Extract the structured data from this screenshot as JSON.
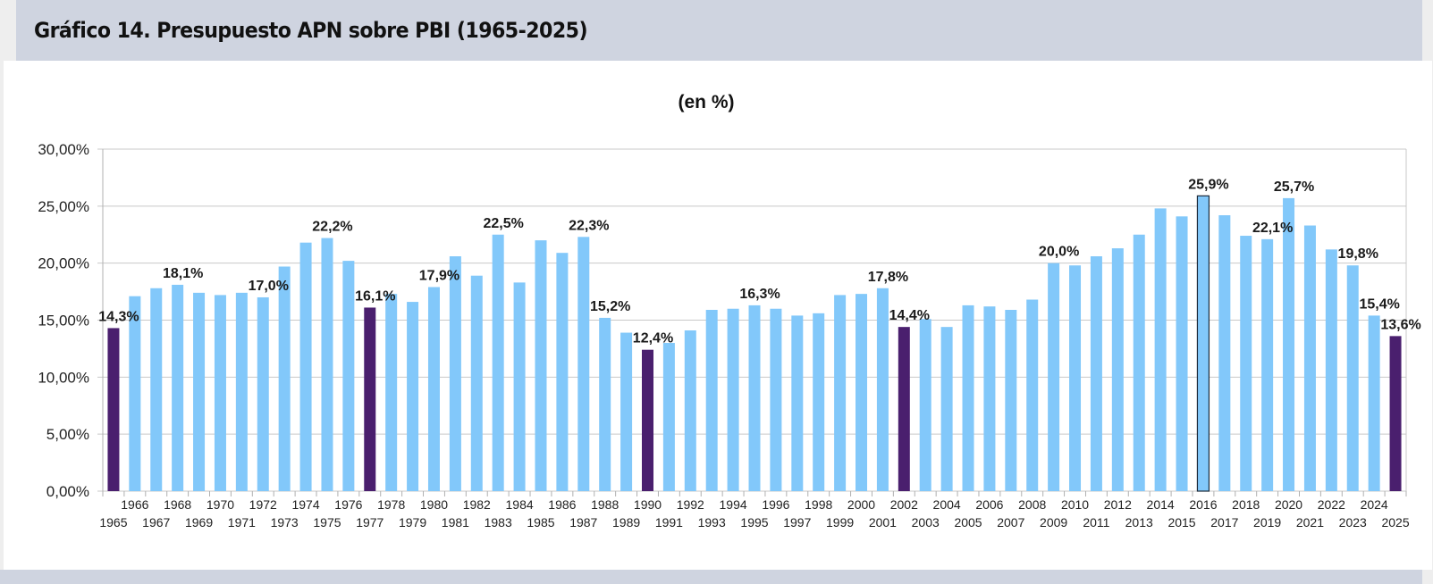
{
  "header": {
    "title": "Gráfico 14. Presupuesto APN sobre PBI (1965-2025)"
  },
  "chart_data": {
    "type": "bar",
    "title": "(en %)",
    "xlabel": "",
    "ylabel": "",
    "ylim": [
      0,
      30
    ],
    "yticks": [
      0,
      5,
      10,
      15,
      20,
      25,
      30
    ],
    "ytick_labels": [
      "0,00%",
      "5,00%",
      "10,00%",
      "15,00%",
      "20,00%",
      "25,00%",
      "30,00%"
    ],
    "grid": true,
    "legend": "none",
    "categories": [
      "1965",
      "1966",
      "1967",
      "1968",
      "1969",
      "1970",
      "1971",
      "1972",
      "1973",
      "1974",
      "1975",
      "1976",
      "1977",
      "1978",
      "1979",
      "1980",
      "1981",
      "1982",
      "1983",
      "1984",
      "1985",
      "1986",
      "1987",
      "1988",
      "1989",
      "1990",
      "1991",
      "1992",
      "1993",
      "1994",
      "1995",
      "1996",
      "1997",
      "1998",
      "1999",
      "2000",
      "2001",
      "2002",
      "2003",
      "2004",
      "2005",
      "2006",
      "2007",
      "2008",
      "2009",
      "2010",
      "2011",
      "2012",
      "2013",
      "2014",
      "2015",
      "2016",
      "2017",
      "2018",
      "2019",
      "2020",
      "2021",
      "2022",
      "2023",
      "2024",
      "2025"
    ],
    "values": [
      14.3,
      17.1,
      17.8,
      18.1,
      17.4,
      17.2,
      17.4,
      17.0,
      19.7,
      21.8,
      22.2,
      20.2,
      16.1,
      17.3,
      16.6,
      17.9,
      20.6,
      18.9,
      22.5,
      18.3,
      22.0,
      20.9,
      22.3,
      15.2,
      13.9,
      12.4,
      13.0,
      14.1,
      15.9,
      16.0,
      16.3,
      16.0,
      15.4,
      15.6,
      17.2,
      17.3,
      17.8,
      14.4,
      15.1,
      14.4,
      16.3,
      16.2,
      15.9,
      16.8,
      20.0,
      19.8,
      20.6,
      21.3,
      22.5,
      24.8,
      24.1,
      25.9,
      24.2,
      22.4,
      22.1,
      25.7,
      23.3,
      21.2,
      19.8,
      15.4,
      13.6
    ],
    "highlighted": [
      "1965",
      "1977",
      "1990",
      "2002",
      "2025"
    ],
    "outlined": [
      "2016"
    ],
    "data_labels": {
      "1965": "14,3%",
      "1968": "18,1%",
      "1972": "17,0%",
      "1975": "22,2%",
      "1977": "16,1%",
      "1980": "17,9%",
      "1983": "22,5%",
      "1987": "22,3%",
      "1988": "15,2%",
      "1990": "12,4%",
      "1995": "16,3%",
      "2001": "17,8%",
      "2002": "14,4%",
      "2009": "20,0%",
      "2016": "25,9%",
      "2019": "22,1%",
      "2020": "25,7%",
      "2023": "19,8%",
      "2024": "15,4%",
      "2025": "13,6%"
    },
    "colors": {
      "default": "#82c8fa",
      "highlight": "#4a1f6e",
      "outline": "#1c2a3a",
      "grid": "#c8c8c8"
    }
  }
}
